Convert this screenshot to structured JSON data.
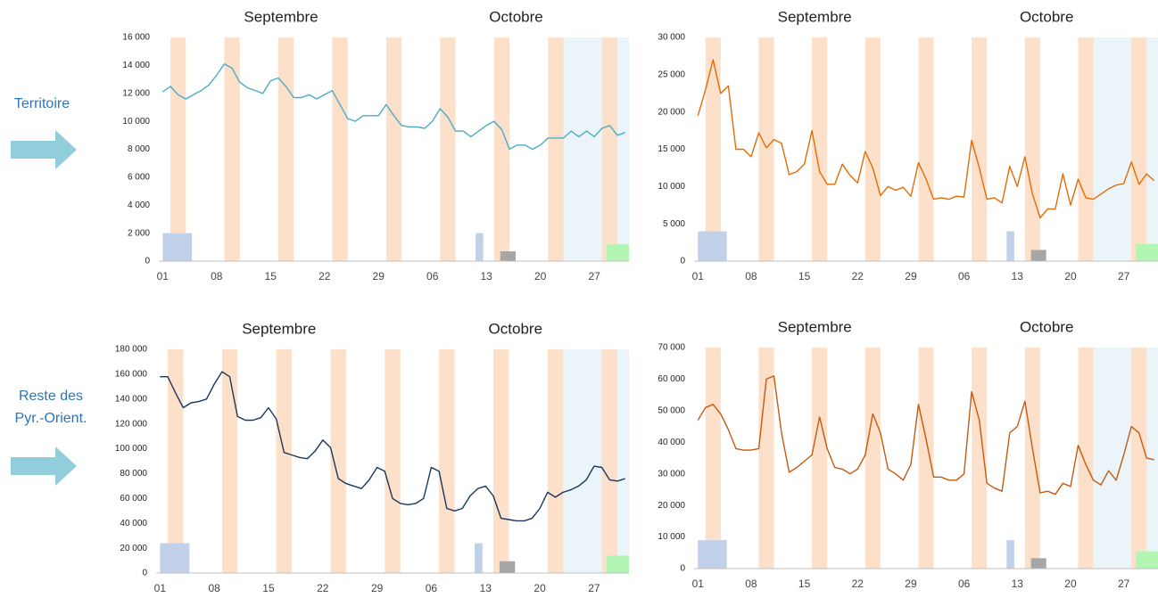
{
  "row_labels": [
    [
      "Territoire"
    ],
    [
      "Reste des",
      "Pyr.-Orient."
    ]
  ],
  "chart_data": [
    {
      "type": "line",
      "annotations": [
        "Septembre",
        "Octobre"
      ],
      "x": [
        1,
        2,
        3,
        4,
        5,
        6,
        7,
        8,
        9,
        10,
        11,
        12,
        13,
        14,
        15,
        16,
        17,
        18,
        19,
        20,
        21,
        22,
        23,
        24,
        25,
        26,
        27,
        28,
        29,
        30,
        31,
        32,
        33,
        34,
        35,
        36,
        37,
        38,
        39,
        40,
        41,
        42,
        43,
        44,
        45,
        46,
        47,
        48,
        49,
        50,
        51,
        52,
        53,
        54,
        55,
        56,
        57,
        58,
        59,
        60,
        61
      ],
      "series": [
        {
          "color": "#4bacc6",
          "values": [
            12100,
            12500,
            11900,
            11600,
            11900,
            12200,
            12600,
            13300,
            14100,
            13800,
            12800,
            12400,
            12200,
            12000,
            12900,
            13100,
            12500,
            11700,
            11700,
            11900,
            11600,
            11900,
            12200,
            11200,
            10200,
            10000,
            10400,
            10400,
            10400,
            11200,
            10400,
            9700,
            9600,
            9600,
            9500,
            10000,
            10900,
            10300,
            9300,
            9300,
            8900,
            9300,
            9700,
            10000,
            9400,
            8000,
            8300,
            8300,
            8000,
            8300,
            8800,
            8800,
            8800,
            9300,
            8900,
            9300,
            8900,
            9500,
            9700,
            9000,
            9200
          ]
        }
      ],
      "xlim": [
        0.5,
        61.5
      ],
      "xticks": [
        {
          "value": 1,
          "label": "01"
        },
        {
          "value": 8,
          "label": "08"
        },
        15,
        22,
        29,
        {
          "value": 36,
          "label": "06"
        },
        {
          "value": 43,
          "label": "13"
        },
        {
          "value": 50,
          "label": "20"
        },
        {
          "value": 57,
          "label": "27"
        }
      ],
      "ylim": [
        0,
        16000
      ],
      "yticks": [
        0,
        {
          "value": 2000,
          "label": "2 000"
        },
        {
          "value": 4000,
          "label": "4 000"
        },
        {
          "value": 6000,
          "label": "6 000"
        },
        {
          "value": 8000,
          "label": "8 000"
        },
        {
          "value": 10000,
          "label": "10 000"
        },
        {
          "value": 12000,
          "label": "12 000"
        },
        {
          "value": 14000,
          "label": "14 000"
        },
        {
          "value": 16000,
          "label": "16 000"
        }
      ],
      "bands": [
        [
          2,
          4
        ],
        [
          9,
          11
        ],
        [
          16,
          18
        ],
        [
          23,
          25
        ],
        [
          30,
          32
        ],
        [
          37,
          39
        ],
        [
          44,
          46
        ],
        [
          51,
          53
        ],
        [
          58,
          60
        ]
      ],
      "holiday": [
        52,
        61.5
      ],
      "bars": [
        {
          "x": [
            1,
            4.8
          ],
          "value": 2000,
          "color": "#c2d1ea"
        },
        {
          "x": [
            41.6,
            42.6
          ],
          "value": 2000,
          "color": "#c2d1ea"
        },
        {
          "x": [
            44.8,
            46.8
          ],
          "value": 700,
          "color": "#a6a6a6"
        },
        {
          "x": [
            58.6,
            61.5
          ],
          "value": 1200,
          "color": "#b3f5b3"
        }
      ]
    },
    {
      "type": "line",
      "annotations": [
        "Septembre",
        "Octobre"
      ],
      "x": [
        1,
        2,
        3,
        4,
        5,
        6,
        7,
        8,
        9,
        10,
        11,
        12,
        13,
        14,
        15,
        16,
        17,
        18,
        19,
        20,
        21,
        22,
        23,
        24,
        25,
        26,
        27,
        28,
        29,
        30,
        31,
        32,
        33,
        34,
        35,
        36,
        37,
        38,
        39,
        40,
        41,
        42,
        43,
        44,
        45,
        46,
        47,
        48,
        49,
        50,
        51,
        52,
        53,
        54,
        55,
        56,
        57,
        58,
        59,
        60,
        61
      ],
      "series": [
        {
          "color": "#e36c09",
          "values": [
            19500,
            23000,
            27000,
            22500,
            23500,
            15000,
            15000,
            14000,
            17200,
            15200,
            16300,
            15800,
            11600,
            12000,
            13000,
            17500,
            12000,
            10300,
            10300,
            13000,
            11500,
            10500,
            14700,
            12500,
            8800,
            10000,
            9500,
            9900,
            8700,
            13200,
            11000,
            8300,
            8500,
            8300,
            8700,
            8600,
            16200,
            12500,
            8300,
            8500,
            7800,
            12700,
            10000,
            14000,
            9000,
            5800,
            7000,
            7000,
            11700,
            7500,
            11000,
            8500,
            8300,
            9000,
            9700,
            10200,
            10400,
            13300,
            10300,
            11700,
            10800
          ]
        }
      ],
      "xlim": [
        0.5,
        61.5
      ],
      "xticks": [
        {
          "value": 1,
          "label": "01"
        },
        {
          "value": 8,
          "label": "08"
        },
        15,
        22,
        29,
        {
          "value": 36,
          "label": "06"
        },
        {
          "value": 43,
          "label": "13"
        },
        {
          "value": 50,
          "label": "20"
        },
        {
          "value": 57,
          "label": "27"
        }
      ],
      "ylim": [
        0,
        30000
      ],
      "yticks": [
        0,
        {
          "value": 5000,
          "label": "5 000"
        },
        {
          "value": 10000,
          "label": "10 000"
        },
        {
          "value": 15000,
          "label": "15 000"
        },
        {
          "value": 20000,
          "label": "20 000"
        },
        {
          "value": 25000,
          "label": "25 000"
        },
        {
          "value": 30000,
          "label": "30 000"
        }
      ],
      "bands": [
        [
          2,
          4
        ],
        [
          9,
          11
        ],
        [
          16,
          18
        ],
        [
          23,
          25
        ],
        [
          30,
          32
        ],
        [
          37,
          39
        ],
        [
          44,
          46
        ],
        [
          51,
          53
        ],
        [
          58,
          60
        ]
      ],
      "holiday": [
        52,
        61.5
      ],
      "bars": [
        {
          "x": [
            1,
            4.8
          ],
          "value": 4000,
          "color": "#c2d1ea"
        },
        {
          "x": [
            41.6,
            42.6
          ],
          "value": 4000,
          "color": "#c2d1ea"
        },
        {
          "x": [
            44.8,
            46.8
          ],
          "value": 1500,
          "color": "#a6a6a6"
        },
        {
          "x": [
            58.6,
            61.5
          ],
          "value": 2300,
          "color": "#b3f5b3"
        }
      ]
    },
    {
      "type": "line",
      "annotations": [
        "Septembre",
        "Octobre"
      ],
      "x": [
        1,
        2,
        3,
        4,
        5,
        6,
        7,
        8,
        9,
        10,
        11,
        12,
        13,
        14,
        15,
        16,
        17,
        18,
        19,
        20,
        21,
        22,
        23,
        24,
        25,
        26,
        27,
        28,
        29,
        30,
        31,
        32,
        33,
        34,
        35,
        36,
        37,
        38,
        39,
        40,
        41,
        42,
        43,
        44,
        45,
        46,
        47,
        48,
        49,
        50,
        51,
        52,
        53,
        54,
        55,
        56,
        57,
        58,
        59,
        60,
        61
      ],
      "series": [
        {
          "color": "#17375e",
          "values": [
            158000,
            158000,
            145000,
            133000,
            137000,
            138000,
            140000,
            152000,
            162000,
            158000,
            126000,
            123000,
            123000,
            125000,
            133000,
            124000,
            97000,
            95000,
            93000,
            92000,
            98000,
            107000,
            101000,
            76000,
            72000,
            70000,
            68000,
            75000,
            85000,
            82000,
            60000,
            56000,
            55000,
            56000,
            60000,
            85000,
            82000,
            52000,
            50000,
            52000,
            62000,
            68000,
            70000,
            62000,
            44000,
            43000,
            42000,
            42000,
            44000,
            52000,
            65000,
            61000,
            65000,
            67000,
            70000,
            75000,
            86000,
            85000,
            75000,
            74000,
            76000
          ]
        }
      ],
      "xlim": [
        0.5,
        61.5
      ],
      "xticks": [
        {
          "value": 1,
          "label": "01"
        },
        {
          "value": 8,
          "label": "08"
        },
        15,
        22,
        29,
        {
          "value": 36,
          "label": "06"
        },
        {
          "value": 43,
          "label": "13"
        },
        {
          "value": 50,
          "label": "20"
        },
        {
          "value": 57,
          "label": "27"
        }
      ],
      "ylim": [
        0,
        180000
      ],
      "yticks": [
        0,
        {
          "value": 20000,
          "label": "20 000"
        },
        {
          "value": 40000,
          "label": "40 000"
        },
        {
          "value": 60000,
          "label": "60 000"
        },
        {
          "value": 80000,
          "label": "80 000"
        },
        {
          "value": 100000,
          "label": "100 000"
        },
        {
          "value": 120000,
          "label": "120 000"
        },
        {
          "value": 140000,
          "label": "140 000"
        },
        {
          "value": 160000,
          "label": "160 000"
        },
        {
          "value": 180000,
          "label": "180 000"
        }
      ],
      "bands": [
        [
          2,
          4
        ],
        [
          9,
          11
        ],
        [
          16,
          18
        ],
        [
          23,
          25
        ],
        [
          30,
          32
        ],
        [
          37,
          39
        ],
        [
          44,
          46
        ],
        [
          51,
          53
        ],
        [
          58,
          60
        ]
      ],
      "holiday": [
        52,
        61.5
      ],
      "bars": [
        {
          "x": [
            1,
            4.8
          ],
          "value": 24000,
          "color": "#c2d1ea"
        },
        {
          "x": [
            41.6,
            42.6
          ],
          "value": 24000,
          "color": "#c2d1ea"
        },
        {
          "x": [
            44.8,
            46.8
          ],
          "value": 9500,
          "color": "#a6a6a6"
        },
        {
          "x": [
            58.6,
            61.5
          ],
          "value": 14000,
          "color": "#b3f5b3"
        }
      ]
    },
    {
      "type": "line",
      "annotations": [
        "Septembre",
        "Octobre"
      ],
      "x": [
        1,
        2,
        3,
        4,
        5,
        6,
        7,
        8,
        9,
        10,
        11,
        12,
        13,
        14,
        15,
        16,
        17,
        18,
        19,
        20,
        21,
        22,
        23,
        24,
        25,
        26,
        27,
        28,
        29,
        30,
        31,
        32,
        33,
        34,
        35,
        36,
        37,
        38,
        39,
        40,
        41,
        42,
        43,
        44,
        45,
        46,
        47,
        48,
        49,
        50,
        51,
        52,
        53,
        54,
        55,
        56,
        57,
        58,
        59,
        60,
        61
      ],
      "series": [
        {
          "color": "#c55a11",
          "values": [
            47000,
            51000,
            52000,
            49000,
            44000,
            38000,
            37500,
            37500,
            38000,
            60000,
            61000,
            43000,
            30500,
            32000,
            34000,
            36000,
            48000,
            38000,
            32000,
            31500,
            30000,
            31500,
            36000,
            49000,
            43000,
            31500,
            30000,
            28000,
            33000,
            52000,
            41000,
            29000,
            29000,
            28000,
            28000,
            30000,
            56000,
            47000,
            27000,
            25500,
            24500,
            43000,
            45000,
            53000,
            38000,
            24000,
            24500,
            23500,
            27000,
            26000,
            39000,
            33000,
            28000,
            26500,
            31000,
            28000,
            36000,
            45000,
            43000,
            35000,
            34500
          ]
        }
      ],
      "xlim": [
        0.5,
        61.5
      ],
      "xticks": [
        {
          "value": 1,
          "label": "01"
        },
        {
          "value": 8,
          "label": "08"
        },
        15,
        22,
        29,
        {
          "value": 36,
          "label": "06"
        },
        {
          "value": 43,
          "label": "13"
        },
        {
          "value": 50,
          "label": "20"
        },
        {
          "value": 57,
          "label": "27"
        }
      ],
      "ylim": [
        0,
        70000
      ],
      "yticks": [
        0,
        {
          "value": 10000,
          "label": "10 000"
        },
        {
          "value": 20000,
          "label": "20 000"
        },
        {
          "value": 30000,
          "label": "30 000"
        },
        {
          "value": 40000,
          "label": "40 000"
        },
        {
          "value": 50000,
          "label": "50 000"
        },
        {
          "value": 60000,
          "label": "60 000"
        },
        {
          "value": 70000,
          "label": "70 000"
        }
      ],
      "bands": [
        [
          2,
          4
        ],
        [
          9,
          11
        ],
        [
          16,
          18
        ],
        [
          23,
          25
        ],
        [
          30,
          32
        ],
        [
          37,
          39
        ],
        [
          44,
          46
        ],
        [
          51,
          53
        ],
        [
          58,
          60
        ]
      ],
      "holiday": [
        52,
        61.5
      ],
      "bars": [
        {
          "x": [
            1,
            4.8
          ],
          "value": 9000,
          "color": "#c2d1ea"
        },
        {
          "x": [
            41.6,
            42.6
          ],
          "value": 9000,
          "color": "#c2d1ea"
        },
        {
          "x": [
            44.8,
            46.8
          ],
          "value": 3300,
          "color": "#a6a6a6"
        },
        {
          "x": [
            58.6,
            61.5
          ],
          "value": 5500,
          "color": "#b3f5b3"
        }
      ]
    }
  ]
}
